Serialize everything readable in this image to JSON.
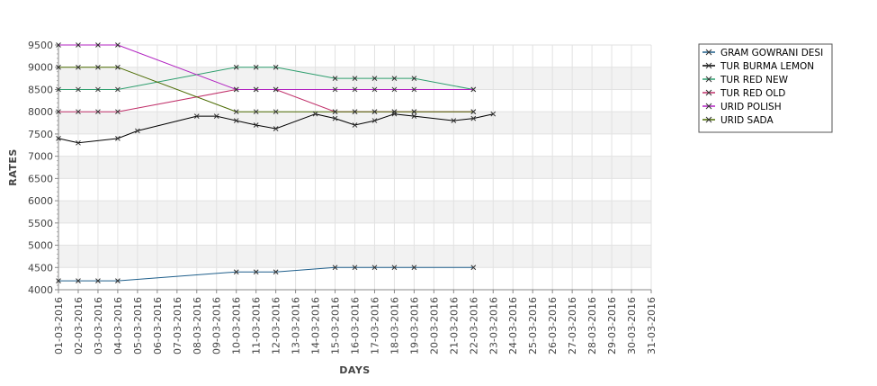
{
  "chart_data": {
    "type": "line",
    "xlabel": "DAYS",
    "ylabel": "RATES",
    "ylim": [
      4000,
      9500
    ],
    "yticks": [
      4000,
      4500,
      5000,
      5500,
      6000,
      6500,
      7000,
      7500,
      8000,
      8500,
      9000,
      9500
    ],
    "grid": true,
    "legend_position": "top-right",
    "categories": [
      "01-03-2016",
      "02-03-2016",
      "03-03-2016",
      "04-03-2016",
      "05-03-2016",
      "06-03-2016",
      "07-03-2016",
      "08-03-2016",
      "09-03-2016",
      "10-03-2016",
      "11-03-2016",
      "12-03-2016",
      "13-03-2016",
      "14-03-2016",
      "15-03-2016",
      "16-03-2016",
      "17-03-2016",
      "18-03-2016",
      "19-03-2016",
      "20-03-2016",
      "21-03-2016",
      "22-03-2016",
      "23-03-2016",
      "24-03-2016",
      "25-03-2016",
      "26-03-2016",
      "27-03-2016",
      "28-03-2016",
      "29-03-2016",
      "30-03-2016",
      "31-03-2016"
    ],
    "series": [
      {
        "name": "GRAM GOWRANI DESI",
        "color": "#1f5f8b",
        "values": [
          4200,
          4200,
          4200,
          4200,
          null,
          null,
          null,
          null,
          null,
          4400,
          4400,
          4400,
          null,
          null,
          4500,
          4500,
          4500,
          4500,
          4500,
          null,
          null,
          4500,
          null,
          null,
          null,
          null,
          null,
          null,
          null,
          null,
          null
        ]
      },
      {
        "name": "TUR BURMA LEMON",
        "color": "#000000",
        "values": [
          7400,
          7300,
          null,
          7400,
          7570,
          null,
          null,
          7900,
          7900,
          7800,
          7700,
          7620,
          null,
          7950,
          7850,
          7700,
          7800,
          7950,
          7900,
          null,
          7800,
          7850,
          7950,
          null,
          null,
          null,
          null,
          null,
          null,
          null,
          null
        ]
      },
      {
        "name": "TUR RED NEW",
        "color": "#2e9e6e",
        "values": [
          8500,
          8500,
          8500,
          8500,
          null,
          null,
          null,
          null,
          null,
          9000,
          9000,
          9000,
          null,
          null,
          8750,
          8750,
          8750,
          8750,
          8750,
          null,
          null,
          8500,
          null,
          null,
          null,
          null,
          null,
          null,
          null,
          null,
          null
        ]
      },
      {
        "name": "TUR RED OLD",
        "color": "#c0306a",
        "values": [
          8000,
          8000,
          8000,
          8000,
          null,
          null,
          null,
          null,
          null,
          8500,
          8500,
          8500,
          null,
          null,
          8000,
          8000,
          8000,
          8000,
          8000,
          null,
          null,
          8000,
          null,
          null,
          null,
          null,
          null,
          null,
          null,
          null,
          null
        ]
      },
      {
        "name": "URID POLISH",
        "color": "#b020c0",
        "values": [
          9500,
          9500,
          9500,
          9500,
          null,
          null,
          null,
          null,
          null,
          8500,
          8500,
          8500,
          null,
          null,
          8500,
          8500,
          8500,
          8500,
          8500,
          null,
          null,
          8500,
          null,
          null,
          null,
          null,
          null,
          null,
          null,
          null,
          null
        ]
      },
      {
        "name": "URID SADA",
        "color": "#4a6a00",
        "values": [
          9000,
          9000,
          9000,
          9000,
          null,
          null,
          null,
          null,
          null,
          8000,
          8000,
          8000,
          null,
          null,
          8000,
          8000,
          8000,
          8000,
          8000,
          null,
          null,
          8000,
          null,
          null,
          null,
          null,
          null,
          null,
          null,
          null,
          null
        ]
      }
    ]
  }
}
